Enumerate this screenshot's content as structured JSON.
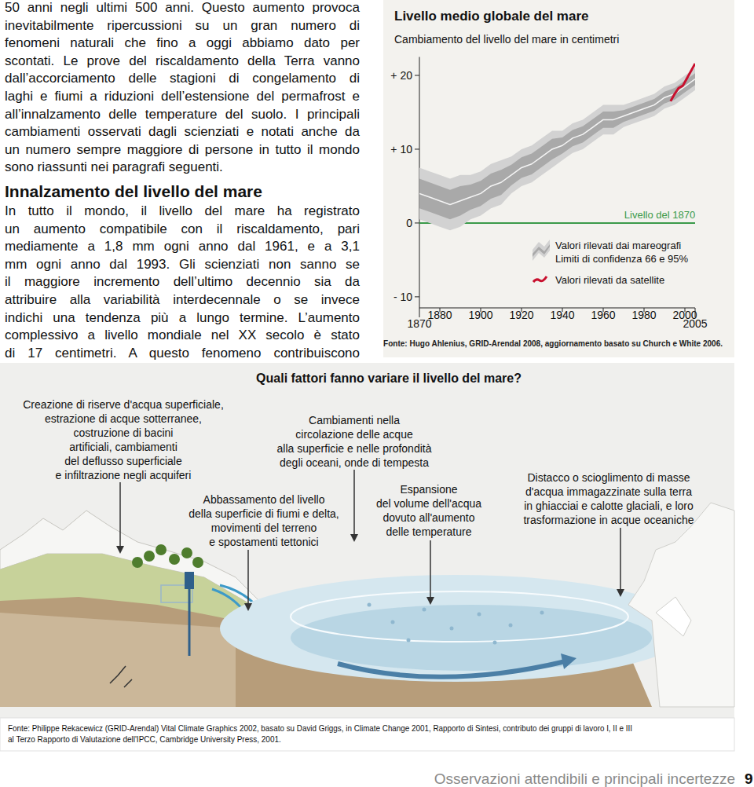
{
  "intro": {
    "lines": [
      "50 anni negli ultimi 500 anni. Questo aumento provoca",
      "inevitabilmente ripercussioni su un gran numero di",
      "fenomeni naturali che fino a oggi abbiamo dato per",
      "scontati. Le prove del riscaldamento della Terra vanno",
      "dall’accorciamento delle stagioni di congelamento di",
      "laghi e fiumi a riduzioni dell’estensione del permafrost e",
      "all’innalzamento delle temperature del suolo. I principali",
      "cambiamenti osservati dagli scienziati e notati anche da",
      "un numero sempre maggiore di persone in tutto il mondo",
      "sono riassunti nei paragrafi seguenti."
    ]
  },
  "section": {
    "heading": "Innalzamento del livello del mare",
    "lines": [
      "In tutto il mondo, il livello del mare ha registrato",
      "un aumento compatibile con il riscaldamento, pari",
      "mediamente a 1,8 mm ogni anno dal 1961, e a 3,1",
      "mm ogni anno dal 1993. Gli scienziati non sanno se",
      "il maggiore incremento dell’ultimo decennio sia da",
      "attribuire alla variabilità interdecennale o se invece",
      "indichi una tendenza più a lungo termine. L’aumento",
      "complessivo a livello mondiale nel XX secolo è stato",
      "di 17 centimetri. A questo fenomeno contribuiscono"
    ]
  },
  "chart_data": {
    "type": "line",
    "title": "Livello medio globale del mare",
    "subtitle": "Cambiamento del livello del mare in centimetri",
    "x": [
      1870,
      1875,
      1880,
      1885,
      1890,
      1895,
      1900,
      1905,
      1910,
      1915,
      1920,
      1925,
      1930,
      1935,
      1940,
      1945,
      1950,
      1955,
      1960,
      1965,
      1970,
      1975,
      1980,
      1985,
      1990,
      1995,
      2000,
      2005
    ],
    "xlim": [
      1870,
      2005
    ],
    "xticks": [
      1870,
      1880,
      1900,
      1920,
      1940,
      1960,
      1980,
      2000,
      2005
    ],
    "ylim": [
      -11.5,
      22.5
    ],
    "yticks": [
      {
        "value": 20,
        "label": "+ 20"
      },
      {
        "value": 10,
        "label": "+ 10"
      },
      0,
      {
        "value": -10,
        "label": "- 10"
      }
    ],
    "legend": "right",
    "series": [
      {
        "name": "Valori rilevati dai mareografi",
        "color": "#a9a9a9",
        "band_label": "Limiti di confidenza 66 e 95%",
        "values": [
          4.0,
          3.5,
          3.0,
          2.5,
          3.0,
          3.5,
          4.0,
          5.0,
          5.5,
          6.5,
          7.5,
          8.0,
          9.0,
          10.0,
          10.5,
          11.5,
          12.0,
          13.0,
          14.0,
          14.0,
          14.5,
          15.0,
          15.5,
          16.0,
          17.0,
          17.5,
          18.5,
          19.5
        ],
        "error_66": [
          2,
          2,
          2,
          2,
          2,
          1.7,
          1.7,
          1.7,
          1.7,
          1.4,
          1.4,
          1.4,
          1.4,
          1.4,
          1.1,
          1.1,
          1.1,
          1.1,
          1.1,
          1.1,
          0.8,
          0.8,
          0.8,
          0.8,
          0.8,
          0.8,
          0.8,
          0.8
        ],
        "error_95": [
          3.5,
          3.5,
          3.5,
          3.5,
          3.5,
          3,
          3,
          3,
          3,
          2.5,
          2.5,
          2.5,
          2.5,
          2.5,
          2,
          2,
          2,
          2,
          2,
          2,
          1.5,
          1.5,
          1.5,
          1.5,
          1.5,
          1.5,
          1.5,
          1.5
        ]
      },
      {
        "name": "Valori rilevati da satellite",
        "color": "#c8102e",
        "x": [
          1993,
          1995,
          1997,
          1999,
          2001,
          2003,
          2005
        ],
        "values": [
          16.5,
          17.5,
          18.3,
          18.6,
          19.6,
          20.6,
          21.6
        ]
      }
    ],
    "reference_line": {
      "value": 0,
      "label": "Livello del 1870",
      "color": "#3a9a4a"
    },
    "source": "Fonte: Hugo Ahlenius, GRID-Arendal 2008, aggiornamento basato su Church e White 2006."
  },
  "diagram": {
    "title": "Quali fattori fanno variare il livello del mare?",
    "labels": [
      {
        "lines": [
          "Creazione di riserve d'acqua superficiale,",
          "estrazione di acque sotterranee,",
          "costruzione di bacini",
          "artificiali, cambiamenti",
          "del deflusso superficiale",
          "e infiltrazione negli acquiferi"
        ]
      },
      {
        "lines": [
          "Cambiamenti nella",
          "circolazione delle acque",
          "alla superficie e nelle profondità",
          "degli oceani, onde di tempesta"
        ]
      },
      {
        "lines": [
          "Abbassamento del livello",
          "della superficie di fiumi e delta,",
          "movimenti del terreno",
          "e spostamenti tettonici"
        ]
      },
      {
        "lines": [
          "Espansione",
          "del volume dell'acqua",
          "dovuto all'aumento",
          "delle temperature"
        ]
      },
      {
        "lines": [
          "Distacco o scioglimento di masse",
          "d'acqua immagazzinate sulla terra",
          "in ghiacciai e calotte glaciali, e loro",
          "trasformazione in acque oceaniche"
        ]
      }
    ],
    "source": {
      "lines": [
        "Fonte: Philippe Rekacewicz (GRID-Arendal) Vital Climate Graphics 2002, basato su David Griggs, in Climate Change 2001, Rapporto di Sintesi, contributo dei gruppi di lavoro I, II e III",
        "al Terzo Rapporto di Valutazione dell'IPCC, Cambridge University Press, 2001."
      ]
    }
  },
  "footer": {
    "title": "Osservazioni attendibili e principali incertezze",
    "page": 9
  }
}
